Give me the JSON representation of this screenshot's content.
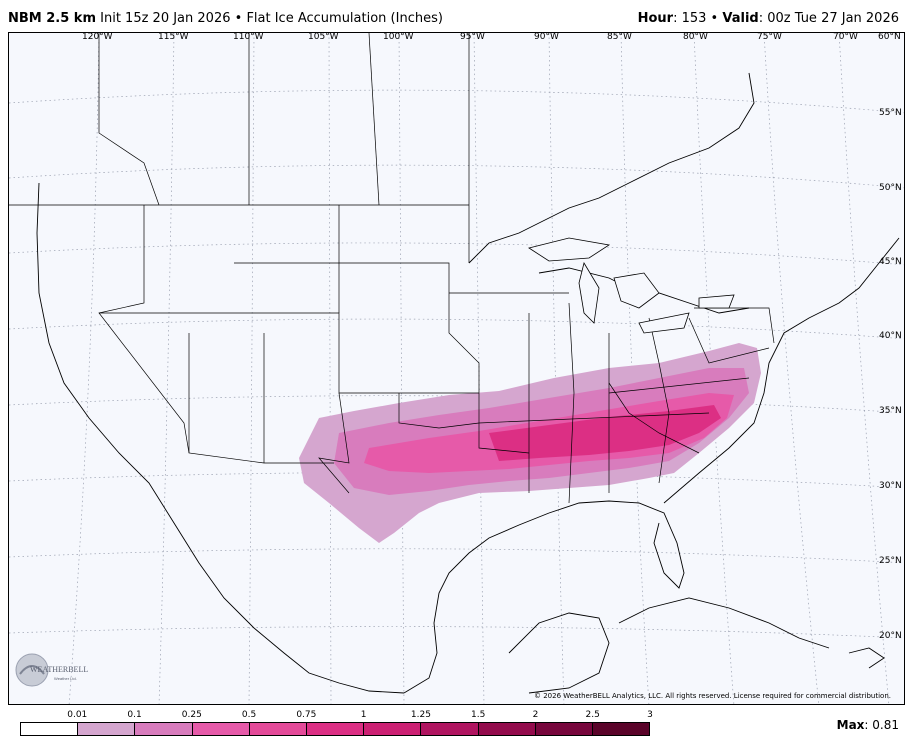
{
  "header": {
    "model": "NBM 2.5 km",
    "init": "Init 15z 20 Jan 2026",
    "separator": "•",
    "product": "Flat Ice Accumulation (Inches)",
    "hour_label": "Hour",
    "hour_value": ": 153 •",
    "valid_label": "Valid",
    "valid_value": ": 00z Tue 27 Jan 2026"
  },
  "map": {
    "longitude_labels": [
      "120°W",
      "115°W",
      "110°W",
      "105°W",
      "100°W",
      "95°W",
      "90°W",
      "85°W",
      "80°W",
      "75°W",
      "70°W",
      "60°N"
    ],
    "latitude_labels": [
      "55°N",
      "50°N",
      "45°N",
      "40°N",
      "35°N",
      "30°N",
      "25°N",
      "20°N"
    ],
    "copyright": "© 2026 WeatherBELL Analytics, LLC. All rights reserved. License required for commercial distribution.",
    "logo_text": "WEATHERBELL",
    "logo_subtext": "Weather Ltd."
  },
  "legend": {
    "ticks": [
      "0.01",
      "0.1",
      "0.25",
      "0.5",
      "0.75",
      "1",
      "1.25",
      "1.5",
      "2",
      "2.5",
      "3"
    ],
    "colors": [
      "#ffffff",
      "#d5a6cf",
      "#d87cbd",
      "#e65aa9",
      "#e44a99",
      "#dc2f84",
      "#cc2073",
      "#b01460",
      "#930b4c",
      "#77063c",
      "#5a0329"
    ],
    "max_label": "Max",
    "max_value": ": 0.81"
  }
}
